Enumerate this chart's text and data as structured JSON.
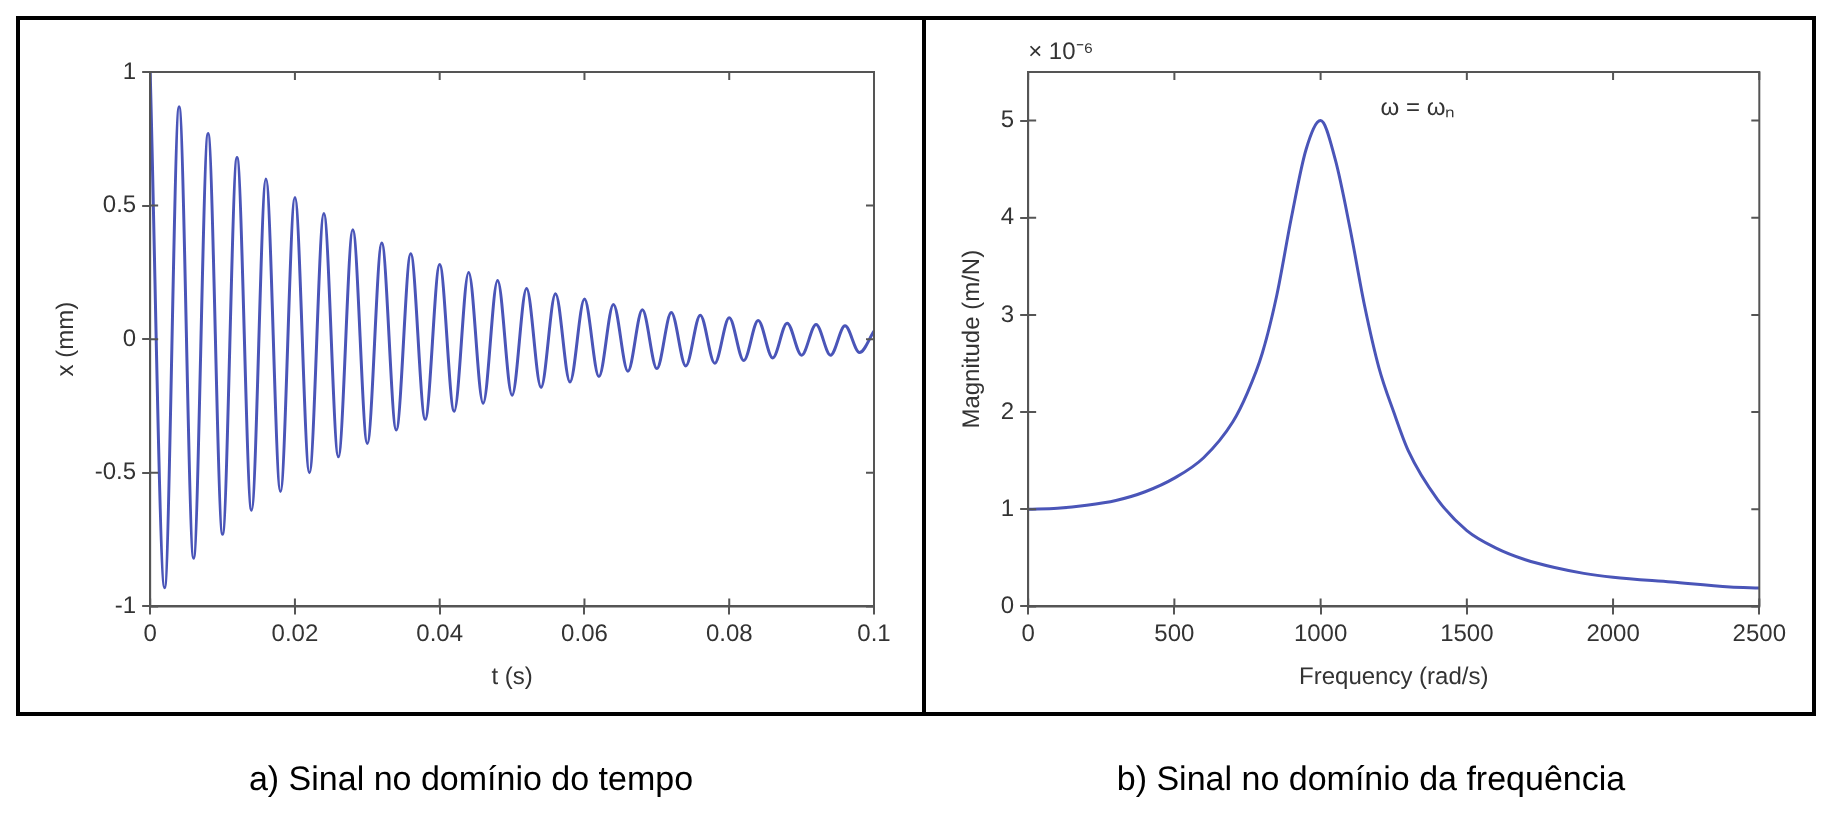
{
  "chart_data": [
    {
      "type": "line",
      "title": "a) Sinal no domínio do tempo",
      "xlabel": "t (s)",
      "ylabel": "x (mm)",
      "xlim": [
        0,
        0.1
      ],
      "ylim": [
        -1,
        1
      ],
      "xticks": [
        0,
        0.02,
        0.04,
        0.06,
        0.08,
        0.1
      ],
      "yticks": [
        -1,
        -0.5,
        0,
        0.5,
        1
      ],
      "grid": false,
      "legend": false,
      "series": [
        {
          "color": "#4a55b8",
          "x": [
            0,
            0.002,
            0.004,
            0.006,
            0.008,
            0.01,
            0.012,
            0.014,
            0.016,
            0.018,
            0.02,
            0.022,
            0.024,
            0.026,
            0.028,
            0.03,
            0.032,
            0.034,
            0.036,
            0.038,
            0.04,
            0.042,
            0.044,
            0.046,
            0.048,
            0.05,
            0.052,
            0.054,
            0.056,
            0.058,
            0.06,
            0.062,
            0.064,
            0.066,
            0.068,
            0.07,
            0.072,
            0.074,
            0.076,
            0.078,
            0.08,
            0.082,
            0.084,
            0.086,
            0.088,
            0.09,
            0.092,
            0.094,
            0.096,
            0.098,
            0.1
          ],
          "values": [
            1,
            -0.93,
            0.87,
            -0.82,
            0.77,
            -0.73,
            0.68,
            -0.64,
            0.6,
            -0.57,
            0.53,
            -0.5,
            0.47,
            -0.44,
            0.41,
            -0.39,
            0.36,
            -0.34,
            0.32,
            -0.3,
            0.28,
            -0.27,
            0.25,
            -0.24,
            0.22,
            -0.21,
            0.19,
            -0.18,
            0.17,
            -0.16,
            0.15,
            -0.14,
            0.13,
            -0.12,
            0.11,
            -0.11,
            0.1,
            -0.1,
            0.09,
            -0.09,
            0.08,
            -0.08,
            0.07,
            -0.07,
            0.06,
            -0.06,
            0.055,
            -0.06,
            0.05,
            -0.05,
            0.03
          ]
        }
      ]
    },
    {
      "type": "line",
      "title": "b) Sinal no domínio da frequência",
      "xlabel": "Frequency (rad/s)",
      "ylabel": "Magnitude (m/N)",
      "xlim": [
        0,
        2500
      ],
      "ylim": [
        0,
        5.5
      ],
      "xticks": [
        0,
        500,
        1000,
        1500,
        2000,
        2500
      ],
      "yticks": [
        0,
        1,
        2,
        3,
        4,
        5
      ],
      "grid": false,
      "legend": false,
      "annotations": [
        "× 10⁻⁶",
        {
          "text": "ω = ωₙ",
          "x": 1000,
          "y": 5
        }
      ],
      "series": [
        {
          "color": "#4a55b8",
          "x": [
            0,
            100,
            200,
            300,
            400,
            500,
            600,
            700,
            750,
            800,
            850,
            900,
            950,
            1000,
            1050,
            1100,
            1150,
            1200,
            1250,
            1300,
            1400,
            1500,
            1600,
            1700,
            1800,
            1900,
            2000,
            2200,
            2400,
            2500
          ],
          "values": [
            1,
            1.01,
            1.04,
            1.09,
            1.18,
            1.32,
            1.53,
            1.9,
            2.2,
            2.6,
            3.2,
            4.0,
            4.7,
            5.0,
            4.6,
            3.9,
            3.1,
            2.45,
            2.0,
            1.6,
            1.1,
            0.78,
            0.6,
            0.48,
            0.4,
            0.34,
            0.3,
            0.25,
            0.2,
            0.19
          ]
        }
      ]
    }
  ]
}
